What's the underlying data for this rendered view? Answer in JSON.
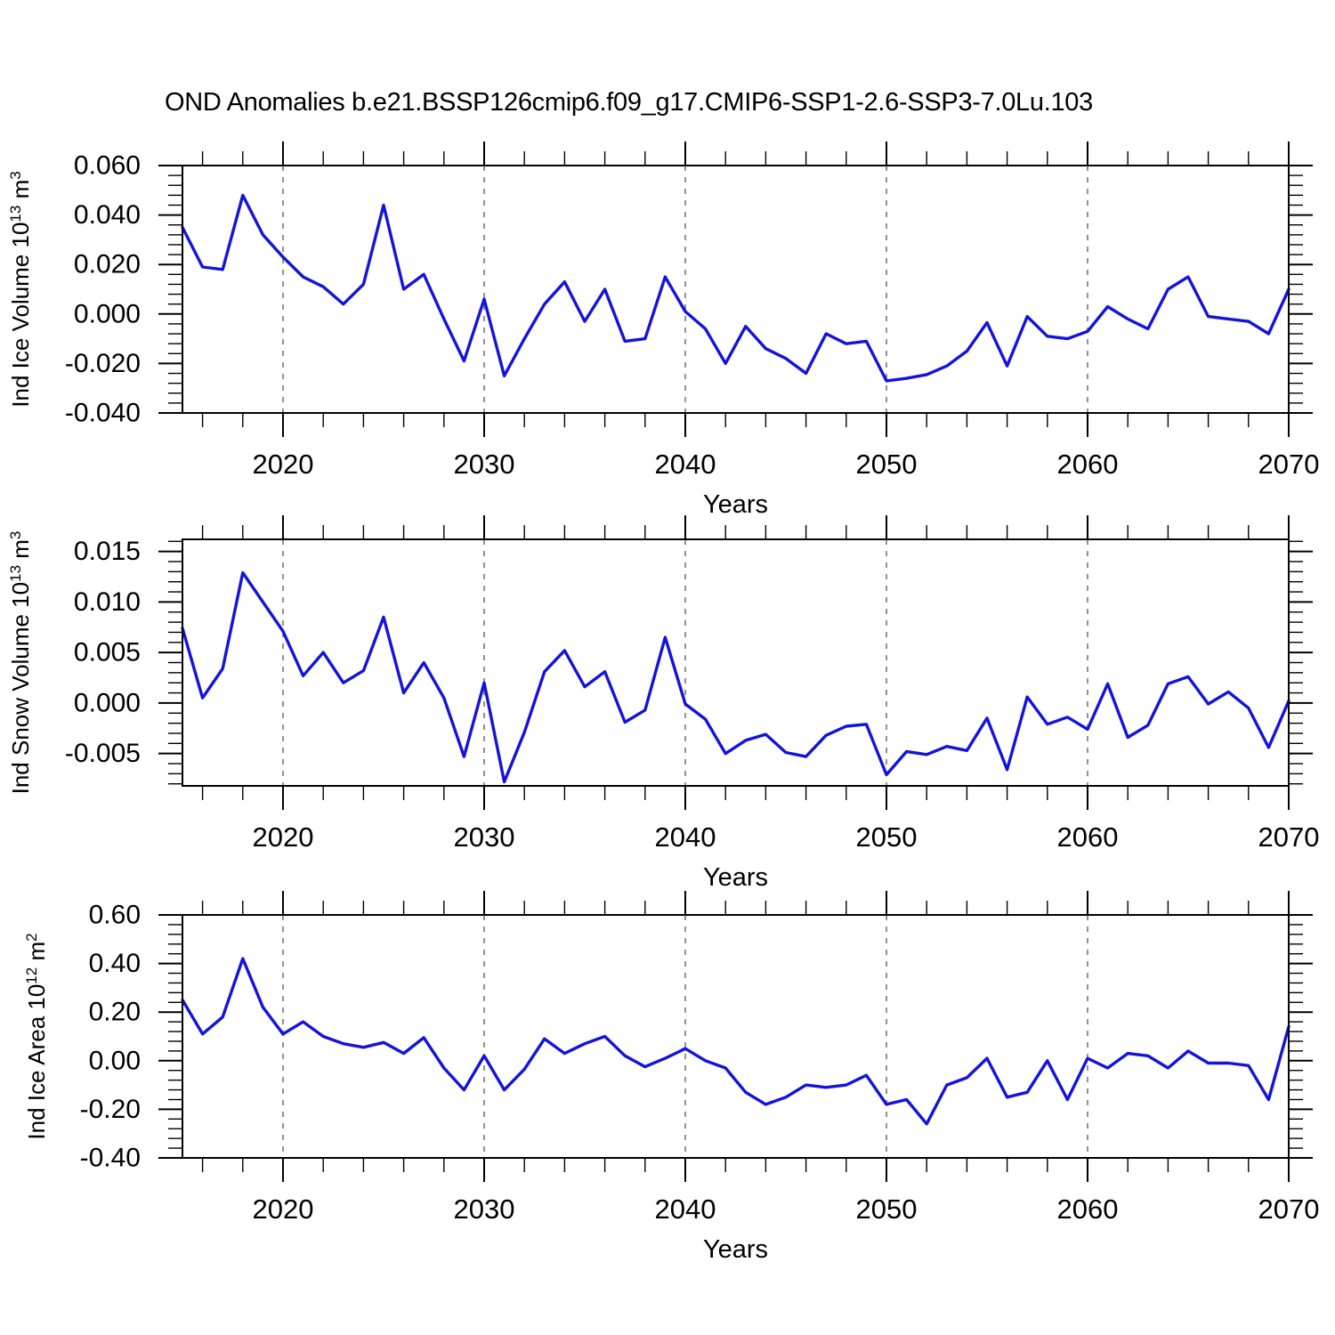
{
  "title": "OND Anomalies b.e21.BSSP126cmip6.f09_g17.CMIP6-SSP1-2.6-SSP3-7.0Lu.103",
  "xlabel": "Years",
  "colors": {
    "line": "#1313dd",
    "grid": "#7f7f7f",
    "axis": "#000000",
    "background": "#ffffff"
  },
  "x_axis": {
    "start_year": 2015,
    "end_year": 2070,
    "major_ticks": [
      2020,
      2030,
      2040,
      2050,
      2060,
      2070
    ],
    "major_tick_labels": [
      "2020",
      "2030",
      "2040",
      "2050",
      "2060",
      "2070"
    ],
    "minor_step_years": 2,
    "gridline_years": [
      2020,
      2030,
      2040,
      2050,
      2060
    ]
  },
  "chart_data": [
    {
      "type": "line",
      "name": "ind-ice-volume",
      "ylabel_plain": "Ind Ice Volume 10^13 m^3",
      "ylabel_parts": [
        {
          "t": "Ind Ice Volume 10"
        },
        {
          "sup": "13"
        },
        {
          "t": " m"
        },
        {
          "sup": "3"
        }
      ],
      "ylim": [
        -0.04,
        0.06
      ],
      "y_major_ticks": [
        0.06,
        0.04,
        0.02,
        0.0,
        -0.02,
        -0.04
      ],
      "y_tick_labels": [
        "0.060",
        "0.040",
        "0.020",
        "0.000",
        "-0.020",
        "-0.040"
      ],
      "y_minor_step": 0.004,
      "x": [
        2015,
        2016,
        2017,
        2018,
        2019,
        2020,
        2021,
        2022,
        2023,
        2024,
        2025,
        2026,
        2027,
        2028,
        2029,
        2030,
        2031,
        2032,
        2033,
        2034,
        2035,
        2036,
        2037,
        2038,
        2039,
        2040,
        2041,
        2042,
        2043,
        2044,
        2045,
        2046,
        2047,
        2048,
        2049,
        2050,
        2051,
        2052,
        2053,
        2054,
        2055,
        2056,
        2057,
        2058,
        2059,
        2060,
        2061,
        2062,
        2063,
        2064,
        2065,
        2066,
        2067,
        2068,
        2069,
        2070
      ],
      "values": [
        0.035,
        0.019,
        0.018,
        0.048,
        0.032,
        0.023,
        0.015,
        0.011,
        0.004,
        0.012,
        0.044,
        0.01,
        0.016,
        -0.002,
        -0.019,
        0.006,
        -0.025,
        -0.01,
        0.004,
        0.013,
        -0.003,
        0.01,
        -0.011,
        -0.01,
        0.015,
        0.001,
        -0.006,
        -0.02,
        -0.005,
        -0.014,
        -0.018,
        -0.024,
        -0.008,
        -0.012,
        -0.011,
        -0.027,
        -0.026,
        -0.0245,
        -0.021,
        -0.015,
        -0.0035,
        -0.021,
        -0.001,
        -0.009,
        -0.01,
        -0.007,
        0.003,
        -0.002,
        -0.006,
        0.01,
        0.015,
        -0.001,
        -0.002,
        -0.003,
        -0.008,
        0.01
      ]
    },
    {
      "type": "line",
      "name": "ind-snow-volume",
      "ylabel_plain": "Ind Snow Volume 10^13 m^3",
      "ylabel_parts": [
        {
          "t": "Ind Snow Volume 10"
        },
        {
          "sup": "13"
        },
        {
          "t": " m"
        },
        {
          "sup": "3"
        }
      ],
      "ylim": [
        -0.0082,
        0.0162
      ],
      "y_major_ticks": [
        0.015,
        0.01,
        0.005,
        0.0,
        -0.005
      ],
      "y_tick_labels": [
        "0.015",
        "0.010",
        "0.005",
        "0.000",
        "-0.005"
      ],
      "y_minor_step": 0.001,
      "x": [
        2015,
        2016,
        2017,
        2018,
        2019,
        2020,
        2021,
        2022,
        2023,
        2024,
        2025,
        2026,
        2027,
        2028,
        2029,
        2030,
        2031,
        2032,
        2033,
        2034,
        2035,
        2036,
        2037,
        2038,
        2039,
        2040,
        2041,
        2042,
        2043,
        2044,
        2045,
        2046,
        2047,
        2048,
        2049,
        2050,
        2051,
        2052,
        2053,
        2054,
        2055,
        2056,
        2057,
        2058,
        2059,
        2060,
        2061,
        2062,
        2063,
        2064,
        2065,
        2066,
        2067,
        2068,
        2069,
        2070
      ],
      "values": [
        0.0074,
        0.0005,
        0.0034,
        0.0129,
        0.01,
        0.0071,
        0.0027,
        0.005,
        0.002,
        0.0032,
        0.0085,
        0.001,
        0.004,
        0.0005,
        -0.0053,
        0.002,
        -0.0078,
        -0.0029,
        0.0031,
        0.0052,
        0.0016,
        0.0031,
        -0.0019,
        -0.0007,
        0.0065,
        -0.0001,
        -0.0016,
        -0.005,
        -0.0037,
        -0.0031,
        -0.0049,
        -0.0053,
        -0.0032,
        -0.0023,
        -0.0021,
        -0.0071,
        -0.0048,
        -0.0051,
        -0.0043,
        -0.0047,
        -0.0015,
        -0.0066,
        0.0006,
        -0.0021,
        -0.0014,
        -0.0026,
        0.0019,
        -0.0034,
        -0.0022,
        0.0019,
        0.0026,
        -0.0001,
        0.0011,
        -0.0005,
        -0.0044,
        0.0002
      ]
    },
    {
      "type": "line",
      "name": "ind-ice-area",
      "ylabel_plain": "Ind Ice Area 10^12 m^2",
      "ylabel_parts": [
        {
          "t": "Ind Ice Area 10"
        },
        {
          "sup": "12"
        },
        {
          "t": " m"
        },
        {
          "sup": "2"
        }
      ],
      "ylim": [
        -0.4,
        0.6
      ],
      "y_major_ticks": [
        0.6,
        0.4,
        0.2,
        0.0,
        -0.2,
        -0.4
      ],
      "y_tick_labels": [
        "0.60",
        "0.40",
        "0.20",
        "0.00",
        "-0.20",
        "-0.40"
      ],
      "y_minor_step": 0.04,
      "x": [
        2015,
        2016,
        2017,
        2018,
        2019,
        2020,
        2021,
        2022,
        2023,
        2024,
        2025,
        2026,
        2027,
        2028,
        2029,
        2030,
        2031,
        2032,
        2033,
        2034,
        2035,
        2036,
        2037,
        2038,
        2039,
        2040,
        2041,
        2042,
        2043,
        2044,
        2045,
        2046,
        2047,
        2048,
        2049,
        2050,
        2051,
        2052,
        2053,
        2054,
        2055,
        2056,
        2057,
        2058,
        2059,
        2060,
        2061,
        2062,
        2063,
        2064,
        2065,
        2066,
        2067,
        2068,
        2069,
        2070
      ],
      "values": [
        0.25,
        0.11,
        0.18,
        0.42,
        0.22,
        0.11,
        0.16,
        0.1,
        0.07,
        0.055,
        0.075,
        0.03,
        0.095,
        -0.03,
        -0.12,
        0.02,
        -0.12,
        -0.035,
        0.09,
        0.03,
        0.07,
        0.1,
        0.02,
        -0.025,
        0.01,
        0.05,
        0.0,
        -0.03,
        -0.13,
        -0.18,
        -0.15,
        -0.1,
        -0.11,
        -0.1,
        -0.06,
        -0.18,
        -0.16,
        -0.26,
        -0.1,
        -0.07,
        0.01,
        -0.15,
        -0.13,
        0.0,
        -0.16,
        0.01,
        -0.03,
        0.03,
        0.02,
        -0.03,
        0.04,
        -0.01,
        -0.01,
        -0.02,
        -0.16,
        0.14
      ]
    }
  ]
}
